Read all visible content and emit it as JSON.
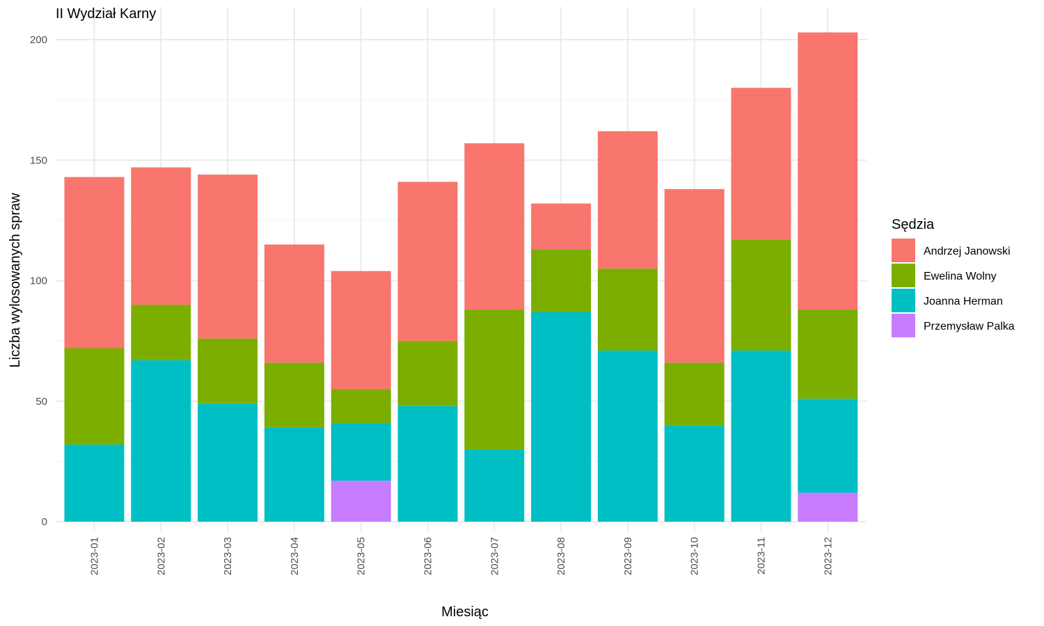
{
  "chart_data": {
    "type": "bar",
    "stacked": true,
    "title": "II Wydział Karny",
    "xlabel": "Miesiąc",
    "ylabel": "Liczba wylosowanych spraw",
    "categories": [
      "2023-01",
      "2023-02",
      "2023-03",
      "2023-04",
      "2023-05",
      "2023-06",
      "2023-07",
      "2023-08",
      "2023-09",
      "2023-10",
      "2023-11",
      "2023-12"
    ],
    "ylim": [
      0,
      210
    ],
    "yticks": [
      0,
      50,
      100,
      150,
      200
    ],
    "grid": true,
    "legend": {
      "title": "Sędzia",
      "placement": "right"
    },
    "stack_order": [
      "Przemysław Palka",
      "Joanna Herman",
      "Ewelina Wolny",
      "Andrzej Janowski"
    ],
    "series": [
      {
        "name": "Andrzej Janowski",
        "color": "#F8766D",
        "values": [
          71,
          57,
          68,
          49,
          49,
          66,
          69,
          19,
          57,
          72,
          63,
          115
        ]
      },
      {
        "name": "Ewelina Wolny",
        "color": "#7CAE00",
        "values": [
          40,
          23,
          27,
          27,
          14,
          27,
          58,
          26,
          34,
          26,
          46,
          37
        ]
      },
      {
        "name": "Joanna Herman",
        "color": "#00BFC4",
        "values": [
          32,
          67,
          49,
          39,
          24,
          48,
          30,
          87,
          71,
          40,
          71,
          39
        ]
      },
      {
        "name": "Przemysław Palka",
        "color": "#C77CFF",
        "values": [
          0,
          0,
          0,
          0,
          17,
          0,
          0,
          0,
          0,
          0,
          0,
          12
        ]
      }
    ]
  }
}
